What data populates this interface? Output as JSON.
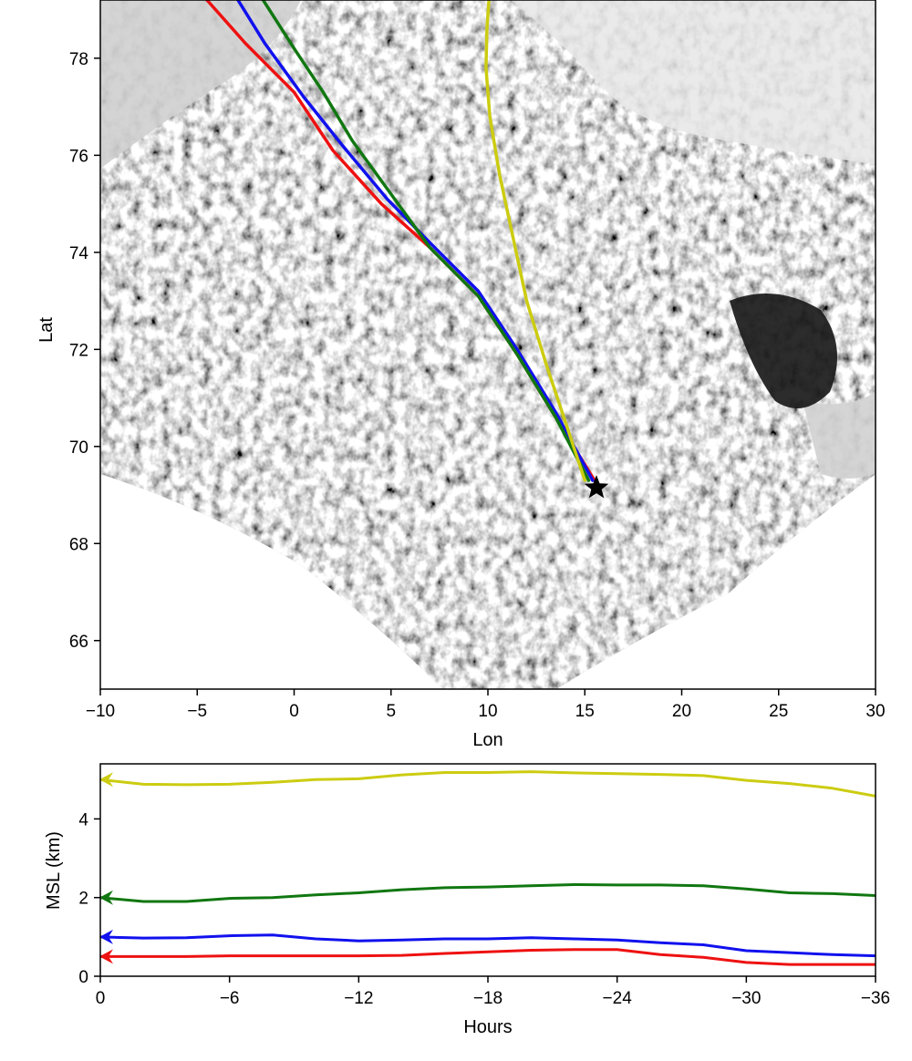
{
  "colors": {
    "red": "#ee1111",
    "blue": "#1111ee",
    "green": "#117711",
    "yellow": "#cccc11",
    "marker": "#000000",
    "axis": "#000000"
  },
  "chart_data": [
    {
      "type": "line",
      "background": "grayscale satellite cloud image (cold-air outbreak, cloud streets and open cells)",
      "xlabel": "Lon",
      "ylabel": "Lat",
      "xlim": [
        -10,
        30
      ],
      "ylim": [
        65,
        79.2
      ],
      "xticks": [
        -10,
        -5,
        0,
        5,
        10,
        15,
        20,
        25,
        30
      ],
      "xtick_labels": [
        "−10",
        "−5",
        "0",
        "5",
        "10",
        "15",
        "20",
        "25",
        "30"
      ],
      "yticks": [
        66,
        68,
        70,
        72,
        74,
        76,
        78
      ],
      "ytick_labels": [
        "66",
        "68",
        "70",
        "72",
        "74",
        "76",
        "78"
      ],
      "grid": false,
      "marker": {
        "symbol": "star",
        "lon": 15.6,
        "lat": 69.15
      },
      "series": [
        {
          "color": "red",
          "x": [
            15.5,
            13.5,
            11.5,
            9.5,
            7,
            4.5,
            2,
            0,
            -2.5,
            -4.5
          ],
          "y": [
            69.3,
            70.6,
            71.9,
            73.1,
            74.1,
            75.0,
            76.1,
            77.3,
            78.3,
            79.2
          ]
        },
        {
          "color": "blue",
          "x": [
            15.4,
            13.5,
            11.5,
            9.5,
            7,
            4.8,
            2.5,
            0.5,
            -1.5,
            -2.9
          ],
          "y": [
            69.3,
            70.7,
            72.0,
            73.2,
            74.2,
            75.1,
            76.2,
            77.2,
            78.3,
            79.2
          ]
        },
        {
          "color": "green",
          "x": [
            15.2,
            13.5,
            11.5,
            9.5,
            7,
            5,
            3,
            1.5,
            0,
            -1.6
          ],
          "y": [
            69.3,
            70.6,
            71.9,
            73.1,
            74.1,
            75.2,
            76.3,
            77.3,
            78.2,
            79.2
          ]
        },
        {
          "color": "yellow",
          "x": [
            15.0,
            14.0,
            13.0,
            12.0,
            11.3,
            10.6,
            10.1,
            9.9,
            9.95,
            10.05
          ],
          "y": [
            69.3,
            70.5,
            71.7,
            73.0,
            74.3,
            75.6,
            76.8,
            77.8,
            78.6,
            79.2
          ]
        }
      ]
    },
    {
      "type": "line",
      "xlabel": "Hours",
      "ylabel": "MSL (km)",
      "xlim": [
        0,
        -36
      ],
      "ylim": [
        0,
        5.4
      ],
      "xticks": [
        0,
        -6,
        -12,
        -18,
        -24,
        -30,
        -36
      ],
      "xtick_labels": [
        "0",
        "−6",
        "−12",
        "−18",
        "−24",
        "−30",
        "−36"
      ],
      "yticks": [
        0,
        2,
        4
      ],
      "ytick_labels": [
        "0",
        "2",
        "4"
      ],
      "grid": false,
      "x": [
        0,
        -2,
        -4,
        -6,
        -8,
        -10,
        -12,
        -14,
        -16,
        -18,
        -20,
        -22,
        -24,
        -26,
        -28,
        -30,
        -32,
        -34,
        -36
      ],
      "series": [
        {
          "color": "yellow",
          "values": [
            5.0,
            4.88,
            4.87,
            4.88,
            4.93,
            5.0,
            5.02,
            5.12,
            5.18,
            5.18,
            5.2,
            5.17,
            5.15,
            5.13,
            5.1,
            4.98,
            4.9,
            4.78,
            4.58
          ]
        },
        {
          "color": "green",
          "values": [
            2.0,
            1.9,
            1.9,
            1.98,
            2.0,
            2.07,
            2.12,
            2.2,
            2.25,
            2.27,
            2.3,
            2.33,
            2.32,
            2.32,
            2.3,
            2.22,
            2.12,
            2.1,
            2.05
          ]
        },
        {
          "color": "blue",
          "values": [
            1.0,
            0.97,
            0.98,
            1.03,
            1.05,
            0.95,
            0.9,
            0.92,
            0.95,
            0.95,
            0.98,
            0.95,
            0.92,
            0.85,
            0.8,
            0.65,
            0.6,
            0.55,
            0.52
          ]
        },
        {
          "color": "red",
          "values": [
            0.5,
            0.5,
            0.5,
            0.52,
            0.52,
            0.52,
            0.52,
            0.53,
            0.58,
            0.62,
            0.66,
            0.68,
            0.68,
            0.55,
            0.48,
            0.35,
            0.3,
            0.3,
            0.3
          ]
        }
      ]
    }
  ]
}
